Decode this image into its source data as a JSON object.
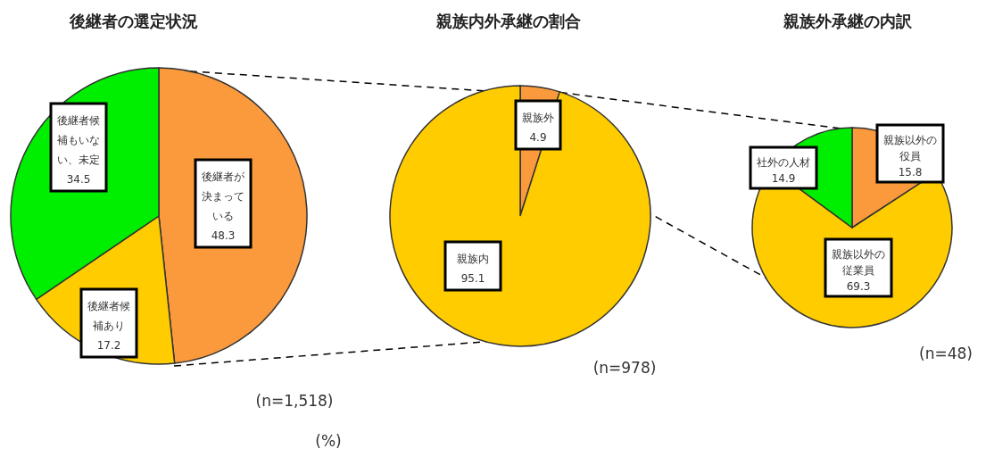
{
  "chart_data": [
    {
      "type": "pie",
      "title": "後継者の選定状況",
      "categories": [
        "後継者が決まっている",
        "後継者候補あり",
        "後継者候補もいない、未定"
      ],
      "values": [
        48.3,
        17.2,
        34.5
      ],
      "colors": [
        "#fb9a3c",
        "#ffcc00",
        "#00ee00"
      ],
      "data_labels": true,
      "annotations": [
        "(n=1,518)",
        "(%)"
      ]
    },
    {
      "type": "pie",
      "title": "親族内外承継の割合",
      "categories": [
        "親族外",
        "親族内"
      ],
      "values": [
        4.9,
        95.1
      ],
      "colors": [
        "#fb9a3c",
        "#ffcc00"
      ],
      "data_labels": true,
      "annotations": [
        "(n=978)"
      ]
    },
    {
      "type": "pie",
      "title": "親族外承継の内訳",
      "categories": [
        "親族以外の役員",
        "親族以外の従業員",
        "社外の人材"
      ],
      "values": [
        15.8,
        69.3,
        14.9
      ],
      "colors": [
        "#fb9a3c",
        "#ffcc00",
        "#00ee00"
      ],
      "data_labels": true,
      "annotations": [
        "(n=48)"
      ]
    }
  ]
}
